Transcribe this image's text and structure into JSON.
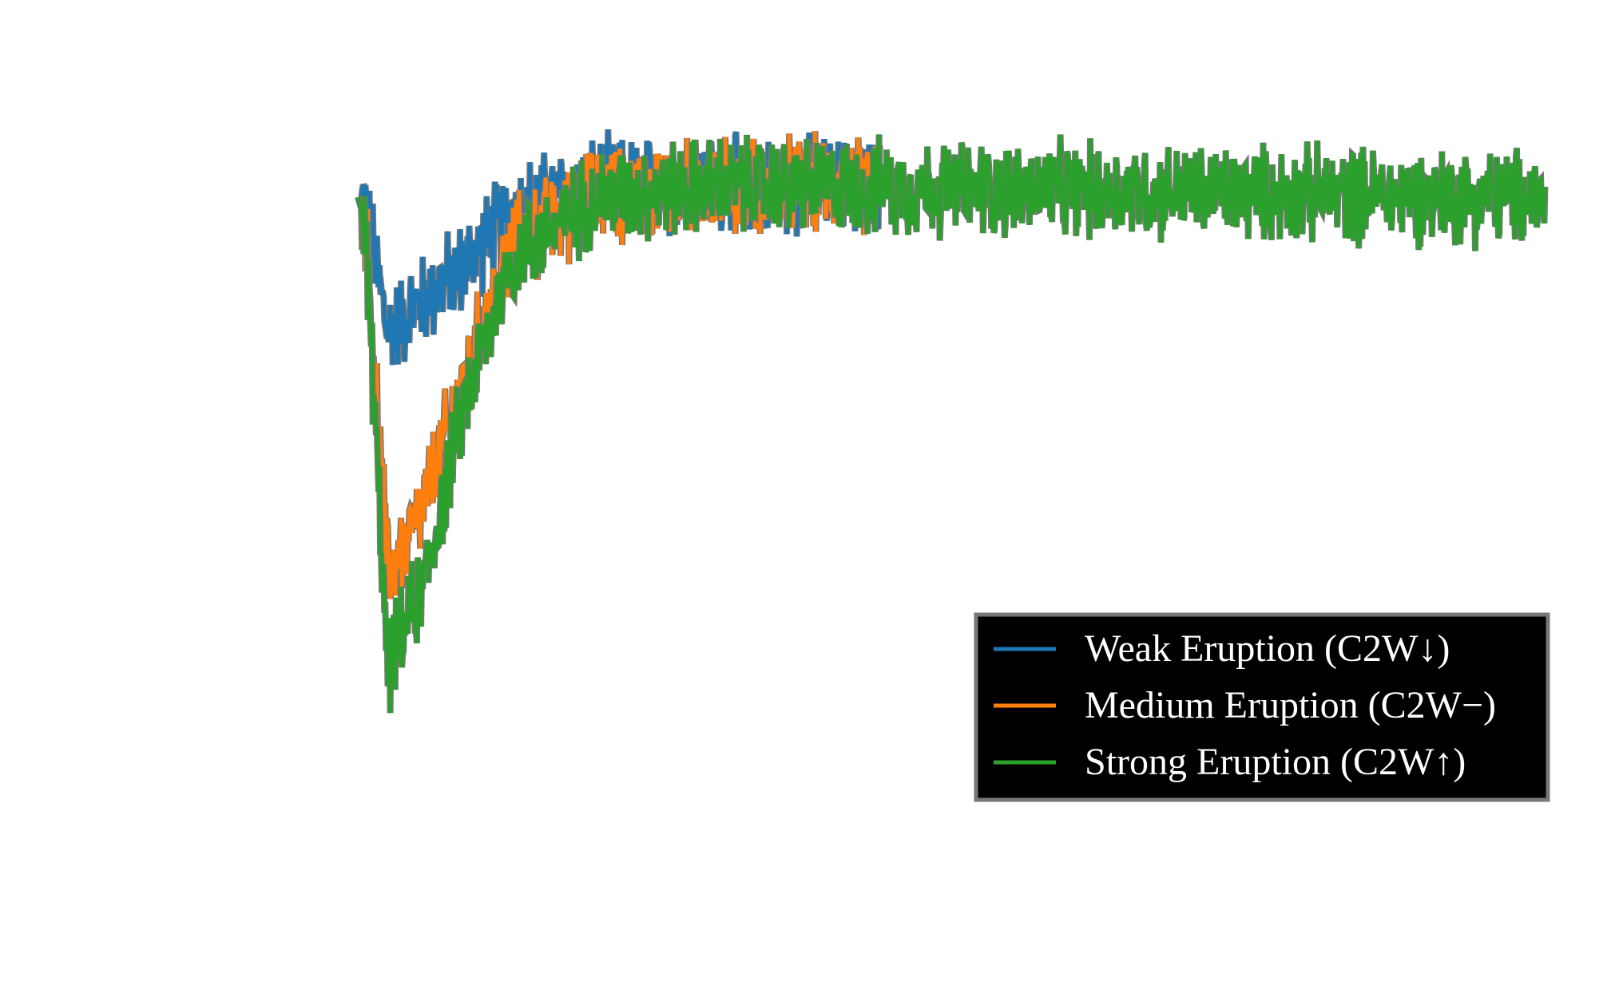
{
  "chart_data": {
    "type": "line",
    "title": "",
    "xlabel": "",
    "ylabel": "",
    "xlim": [
      0,
      1000
    ],
    "ylim": [
      -2.5,
      0.6
    ],
    "grid": false,
    "legend": {
      "placement": "lower-right",
      "background": "#000000",
      "text_color": "#ffffff"
    },
    "series": [
      {
        "name": "Weak Eruption (C2W↓)",
        "color": "#1f77b4",
        "x_end": 440,
        "profile": [
          [
            0,
            0
          ],
          [
            6,
            -0.03
          ],
          [
            25,
            -0.55
          ],
          [
            90,
            -0.28
          ],
          [
            130,
            -0.05
          ],
          [
            200,
            0.05
          ],
          [
            300,
            0.05
          ],
          [
            440,
            0.05
          ]
        ],
        "noise_amplitude": 0.16
      },
      {
        "name": "Medium Eruption (C2W−)",
        "color": "#ff7f0e",
        "x_end": 440,
        "profile": [
          [
            0,
            0
          ],
          [
            6,
            -0.05
          ],
          [
            25,
            -1.55
          ],
          [
            50,
            -1.35
          ],
          [
            90,
            -0.75
          ],
          [
            130,
            -0.2
          ],
          [
            200,
            0.0
          ],
          [
            300,
            0.05
          ],
          [
            440,
            0.05
          ]
        ],
        "noise_amplitude": 0.16
      },
      {
        "name": "Strong Eruption (C2W↑)",
        "color": "#2ca02c",
        "x_end": 1000,
        "profile": [
          [
            0,
            0
          ],
          [
            6,
            -0.1
          ],
          [
            25,
            -1.95
          ],
          [
            55,
            -1.6
          ],
          [
            90,
            -0.85
          ],
          [
            130,
            -0.25
          ],
          [
            200,
            0.0
          ],
          [
            300,
            0.05
          ],
          [
            1000,
            0.0
          ]
        ],
        "noise_amplitude": 0.16
      }
    ]
  }
}
